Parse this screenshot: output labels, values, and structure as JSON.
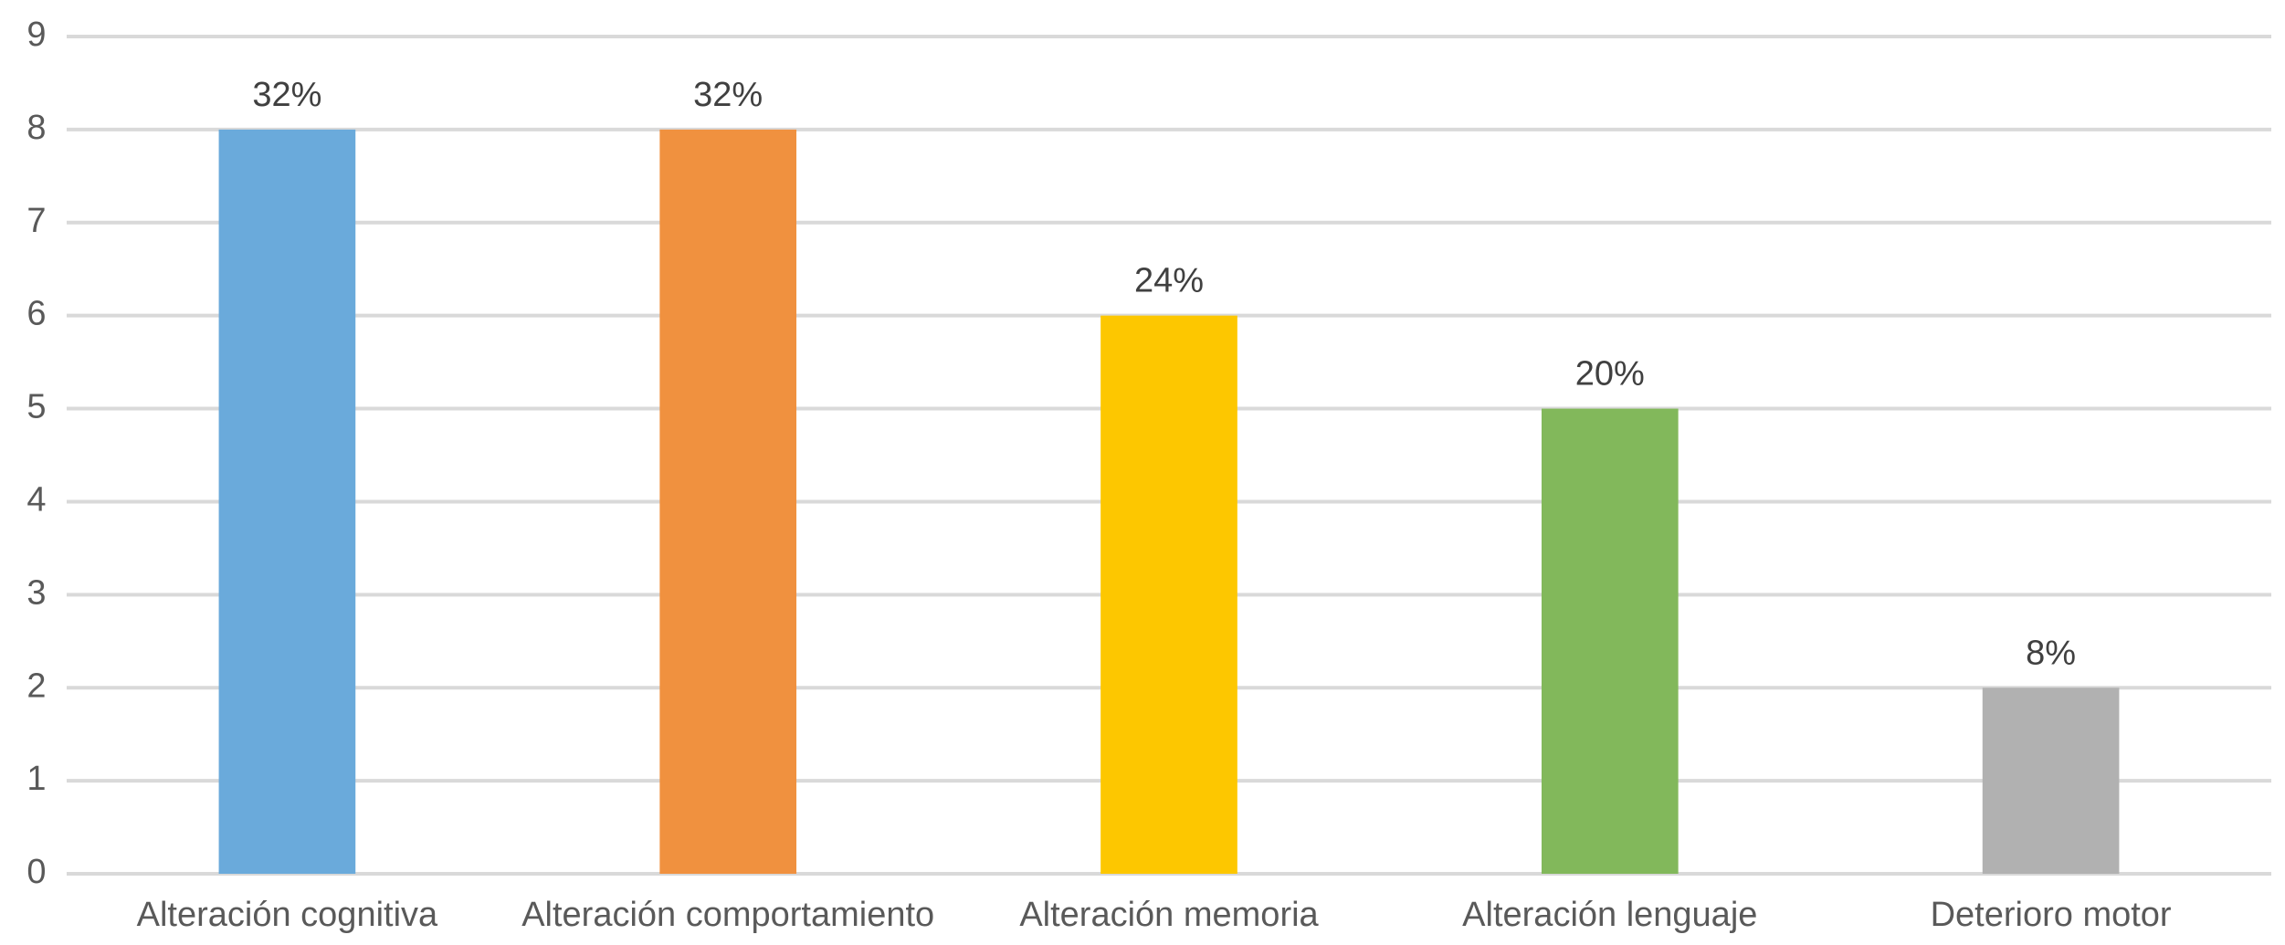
{
  "chart_data": {
    "type": "bar",
    "categories": [
      "Alteración cognitiva",
      "Alteración comportamiento",
      "Alteración memoria",
      "Alteración lenguaje",
      "Deterioro motor"
    ],
    "values": [
      8,
      8,
      6,
      5,
      2
    ],
    "value_labels": [
      "32%",
      "32%",
      "24%",
      "20%",
      "8%"
    ],
    "colors": [
      "#6aaadb",
      "#f0913f",
      "#fdc700",
      "#82b85b",
      "#b1b1b1"
    ],
    "ylim": [
      0,
      9
    ],
    "yticks": [
      0,
      1,
      2,
      3,
      4,
      5,
      6,
      7,
      8,
      9
    ],
    "grid": true
  }
}
